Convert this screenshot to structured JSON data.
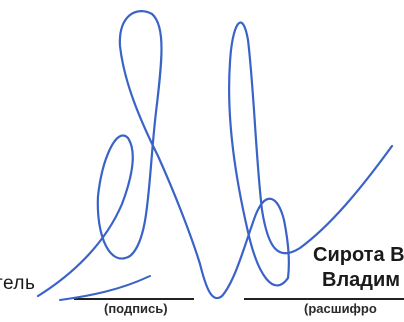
{
  "document": {
    "signer_role_fragment": "тель",
    "signer_name_line1": "Сирота В",
    "signer_name_line2": "Владим",
    "caption_signature": "(подпись)",
    "caption_decoding": "(расшифро"
  },
  "signature": {
    "ink_color": "#3a63c8"
  }
}
